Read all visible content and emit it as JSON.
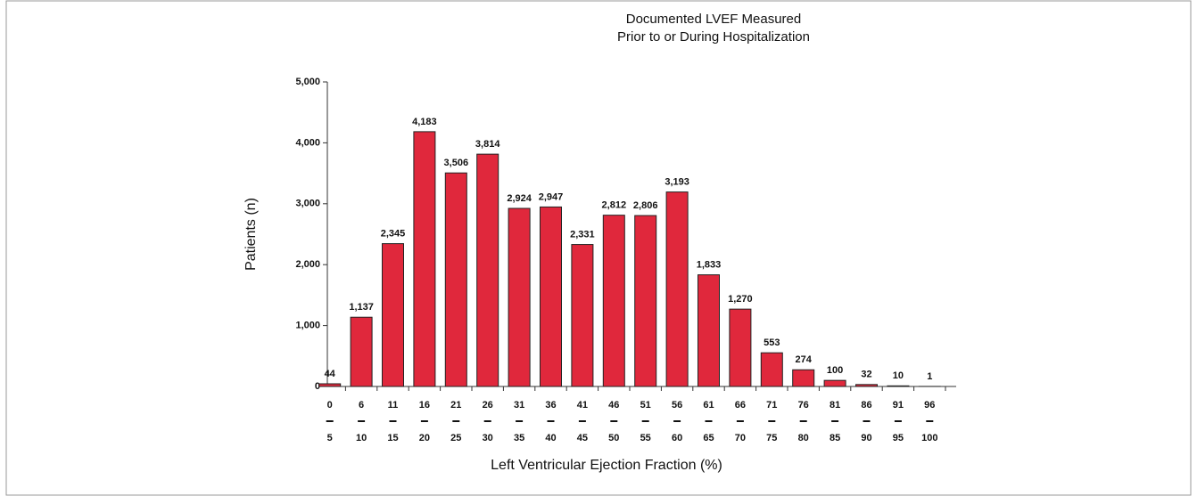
{
  "chart_data": {
    "type": "bar",
    "title": [
      "Documented LVEF Measured",
      "Prior to or During Hospitalization"
    ],
    "x_label": "Left Ventricular Ejection Fraction (%)",
    "y_label": "Patients (n)",
    "categories": [
      [
        "0",
        "5"
      ],
      [
        "6",
        "10"
      ],
      [
        "11",
        "15"
      ],
      [
        "16",
        "20"
      ],
      [
        "21",
        "25"
      ],
      [
        "26",
        "30"
      ],
      [
        "31",
        "35"
      ],
      [
        "36",
        "40"
      ],
      [
        "41",
        "45"
      ],
      [
        "46",
        "50"
      ],
      [
        "51",
        "55"
      ],
      [
        "56",
        "60"
      ],
      [
        "61",
        "65"
      ],
      [
        "66",
        "70"
      ],
      [
        "71",
        "75"
      ],
      [
        "76",
        "80"
      ],
      [
        "81",
        "85"
      ],
      [
        "86",
        "90"
      ],
      [
        "91",
        "95"
      ],
      [
        "96",
        "100"
      ]
    ],
    "values": [
      44,
      1137,
      2345,
      4183,
      3506,
      3814,
      2924,
      2947,
      2331,
      2812,
      2806,
      3193,
      1833,
      1270,
      553,
      274,
      100,
      32,
      10,
      1
    ],
    "value_labels": [
      "44",
      "1,137",
      "2,345",
      "4,183",
      "3,506",
      "3,814",
      "2,924",
      "2,947",
      "2,331",
      "2,812",
      "2,806",
      "3,193",
      "1,833",
      "1,270",
      "553",
      "274",
      "100",
      "32",
      "10",
      "1"
    ],
    "color": "#e0283c",
    "ylim": [
      0,
      5000
    ],
    "yticks": [
      0,
      {
        "value": 1000,
        "label": "1,000"
      },
      {
        "value": 2000,
        "label": "2,000"
      },
      {
        "value": 3000,
        "label": "3,000"
      },
      {
        "value": 4000,
        "label": "4,000"
      },
      {
        "value": 5000,
        "label": "5,000"
      }
    ]
  }
}
